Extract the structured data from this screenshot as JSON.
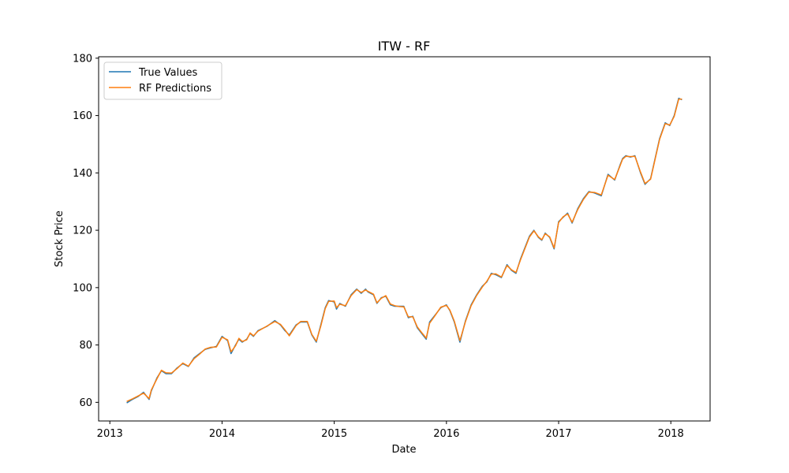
{
  "chart_data": {
    "type": "line",
    "title": "ITW - RF",
    "xlabel": "Date",
    "ylabel": "Stock Price",
    "x_ticks": [
      "2013",
      "2014",
      "2015",
      "2016",
      "2017",
      "2018"
    ],
    "y_ticks": [
      60,
      80,
      100,
      120,
      140,
      160,
      180
    ],
    "xlim": [
      2012.9,
      2018.35
    ],
    "ylim": [
      53.5,
      180.5
    ],
    "grid": false,
    "legend_position": "top-left",
    "x": [
      2013.15,
      2013.2,
      2013.25,
      2013.3,
      2013.35,
      2013.37,
      2013.42,
      2013.46,
      2013.5,
      2013.55,
      2013.6,
      2013.65,
      2013.7,
      2013.75,
      2013.8,
      2013.85,
      2013.9,
      2013.95,
      2014.0,
      2014.05,
      2014.08,
      2014.12,
      2014.15,
      2014.18,
      2014.22,
      2014.25,
      2014.28,
      2014.32,
      2014.4,
      2014.47,
      2014.52,
      2014.56,
      2014.6,
      2014.66,
      2014.7,
      2014.76,
      2014.8,
      2014.84,
      2014.88,
      2014.92,
      2014.95,
      2015.0,
      2015.02,
      2015.05,
      2015.1,
      2015.15,
      2015.2,
      2015.24,
      2015.28,
      2015.3,
      2015.35,
      2015.38,
      2015.42,
      2015.46,
      2015.5,
      2015.54,
      2015.58,
      2015.62,
      2015.66,
      2015.7,
      2015.74,
      2015.78,
      2015.82,
      2015.85,
      2015.9,
      2015.95,
      2016.0,
      2016.03,
      2016.07,
      2016.12,
      2016.17,
      2016.22,
      2016.27,
      2016.32,
      2016.36,
      2016.4,
      2016.44,
      2016.49,
      2016.54,
      2016.58,
      2016.62,
      2016.66,
      2016.7,
      2016.74,
      2016.78,
      2016.82,
      2016.85,
      2016.88,
      2016.92,
      2016.96,
      2017.0,
      2017.04,
      2017.08,
      2017.12,
      2017.17,
      2017.22,
      2017.27,
      2017.32,
      2017.38,
      2017.44,
      2017.5,
      2017.55,
      2017.57,
      2017.6,
      2017.64,
      2017.68,
      2017.73,
      2017.77,
      2017.82,
      2017.86,
      2017.9,
      2017.95,
      2017.99,
      2018.03,
      2018.07,
      2018.1
    ],
    "series": [
      {
        "name": "True Values",
        "color": "#1f77b4",
        "values": [
          59.8,
          61.0,
          62.0,
          63.5,
          61.0,
          64.0,
          68.5,
          71.0,
          70.0,
          70.0,
          72.0,
          73.5,
          72.5,
          75.5,
          77.0,
          78.5,
          79.0,
          79.5,
          83.0,
          81.5,
          77.0,
          80.0,
          82.0,
          81.0,
          82.0,
          84.0,
          83.0,
          85.0,
          86.5,
          88.5,
          87.0,
          85.0,
          83.5,
          87.0,
          88.0,
          88.0,
          83.5,
          81.0,
          87.0,
          93.0,
          95.5,
          95.0,
          92.5,
          94.5,
          93.5,
          97.5,
          99.5,
          98.0,
          99.5,
          98.5,
          97.5,
          94.5,
          96.5,
          97.0,
          94.0,
          93.5,
          93.5,
          93.5,
          89.5,
          90.0,
          86.0,
          84.0,
          82.0,
          88.0,
          90.5,
          93.0,
          94.0,
          92.0,
          88.0,
          81.0,
          88.5,
          94.0,
          97.5,
          100.5,
          102.0,
          105.0,
          104.5,
          103.5,
          108.0,
          106.0,
          105.0,
          110.0,
          114.0,
          118.0,
          120.0,
          117.5,
          116.5,
          119.0,
          117.5,
          113.5,
          123.0,
          124.5,
          126.0,
          122.5,
          127.5,
          131.0,
          133.5,
          133.0,
          132.0,
          139.5,
          137.5,
          143.0,
          145.0,
          146.0,
          145.5,
          146.0,
          140.0,
          136.0,
          138.0,
          145.0,
          152.0,
          157.5,
          156.5,
          160.0,
          166.0,
          165.5
        ]
      },
      {
        "name": "RF Predictions",
        "color": "#ff7f0e",
        "values": [
          60.3,
          61.2,
          62.2,
          63.2,
          61.3,
          64.3,
          68.2,
          71.2,
          70.3,
          70.2,
          71.8,
          73.7,
          72.6,
          75.2,
          76.8,
          78.6,
          79.2,
          79.3,
          82.7,
          81.8,
          77.6,
          79.7,
          82.3,
          81.2,
          81.8,
          84.2,
          83.2,
          84.8,
          86.6,
          88.2,
          87.2,
          85.3,
          83.2,
          86.8,
          88.2,
          88.2,
          83.7,
          81.3,
          86.6,
          92.7,
          95.2,
          95.3,
          93.0,
          94.2,
          93.7,
          97.2,
          99.3,
          98.3,
          99.2,
          98.7,
          97.7,
          94.7,
          96.3,
          97.2,
          94.3,
          93.7,
          93.4,
          93.3,
          89.8,
          89.8,
          86.3,
          84.3,
          82.4,
          87.6,
          90.3,
          93.2,
          93.8,
          92.2,
          88.3,
          81.5,
          88.2,
          93.7,
          97.3,
          100.2,
          102.2,
          104.7,
          104.8,
          103.7,
          107.7,
          106.2,
          105.3,
          109.7,
          113.7,
          117.7,
          119.8,
          117.7,
          116.7,
          118.8,
          117.7,
          113.8,
          122.7,
          124.7,
          125.7,
          122.8,
          127.2,
          130.7,
          133.3,
          133.2,
          132.3,
          139.2,
          137.7,
          142.7,
          144.8,
          145.8,
          145.7,
          145.8,
          140.3,
          136.3,
          137.8,
          144.8,
          151.7,
          157.2,
          156.7,
          159.7,
          165.7,
          165.7
        ]
      }
    ]
  }
}
